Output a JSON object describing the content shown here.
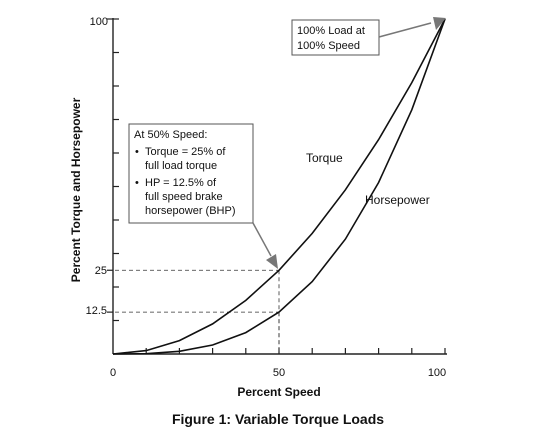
{
  "chart_data": {
    "type": "line",
    "xlabel": "Percent Speed",
    "ylabel": "Percent Torque and Horsepower",
    "caption": "Figure 1: Variable Torque Loads",
    "xlim": [
      0,
      100
    ],
    "ylim": [
      0,
      100
    ],
    "x_ticks": [
      "0",
      "50",
      "100"
    ],
    "y_ticks": [
      "100",
      "25",
      "12.5"
    ],
    "grid": false,
    "series": [
      {
        "name": "Torque",
        "x": [
          0,
          10,
          20,
          30,
          40,
          50,
          60,
          70,
          80,
          90,
          100
        ],
        "y": [
          0,
          1,
          4,
          9,
          16,
          25,
          36,
          49,
          64,
          81,
          100
        ]
      },
      {
        "name": "Horsepower",
        "x": [
          0,
          10,
          20,
          30,
          40,
          50,
          60,
          70,
          80,
          90,
          100
        ],
        "y": [
          0,
          0.1,
          0.8,
          2.7,
          6.4,
          12.5,
          21.6,
          34.3,
          51.2,
          72.9,
          100
        ]
      }
    ],
    "reference_lines": [
      {
        "x": 50,
        "y": 25,
        "label": "25"
      },
      {
        "x": 50,
        "y": 12.5,
        "label": "12.5"
      }
    ],
    "annotations": {
      "top": [
        "100% Load at",
        "100% Speed"
      ],
      "mid": {
        "heading": "At 50% Speed:",
        "bullets": [
          [
            "Torque = 25% of",
            "full load torque"
          ],
          [
            "HP = 12.5% of",
            "full speed brake",
            "horsepower (BHP)"
          ]
        ]
      }
    }
  }
}
